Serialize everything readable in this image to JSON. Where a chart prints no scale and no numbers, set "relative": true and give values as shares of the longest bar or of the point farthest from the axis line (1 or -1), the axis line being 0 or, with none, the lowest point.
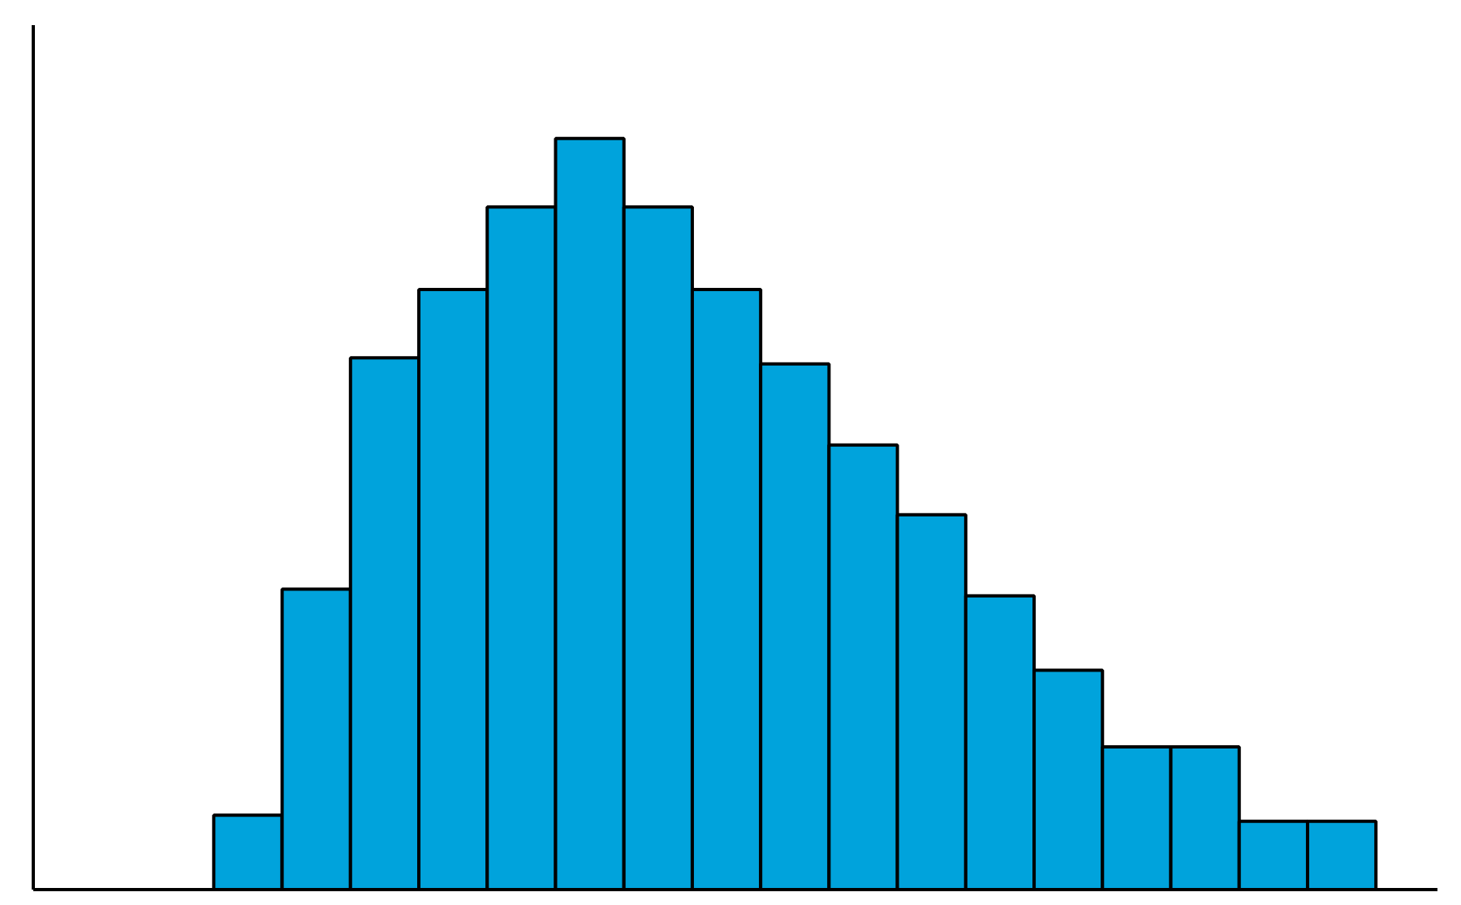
{
  "chart_data": {
    "type": "bar",
    "relative": true,
    "color": "#00a3dc",
    "categories": [
      null,
      null,
      null,
      null,
      null,
      null,
      null,
      null,
      null,
      null,
      null,
      null,
      null,
      null,
      null,
      null,
      null
    ],
    "values": [
      0.099,
      0.4,
      0.708,
      0.799,
      0.909,
      1,
      0.909,
      0.799,
      0.7,
      0.592,
      0.499,
      0.391,
      0.292,
      0.19,
      0.19,
      0.091,
      0.091
    ]
  }
}
